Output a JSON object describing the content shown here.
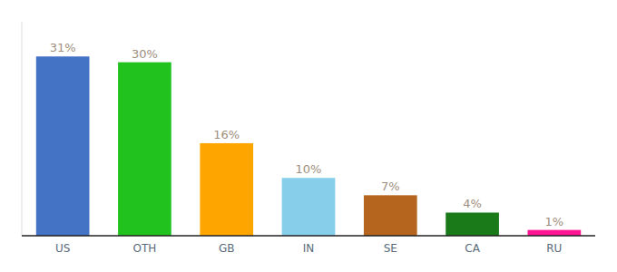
{
  "chart_data": {
    "type": "bar",
    "categories": [
      "US",
      "OTH",
      "GB",
      "IN",
      "SE",
      "CA",
      "RU"
    ],
    "values": [
      31,
      30,
      16,
      10,
      7,
      4,
      1
    ],
    "value_labels": [
      "31%",
      "30%",
      "16%",
      "10%",
      "7%",
      "4%",
      "1%"
    ],
    "colors": [
      "#4472C4",
      "#21C21E",
      "#FFA500",
      "#87CEEB",
      "#B5651D",
      "#1A7A1A",
      "#FF1493"
    ],
    "ylim": [
      0,
      37
    ],
    "data_labels": true,
    "tick_labels": "x",
    "grid": false
  }
}
